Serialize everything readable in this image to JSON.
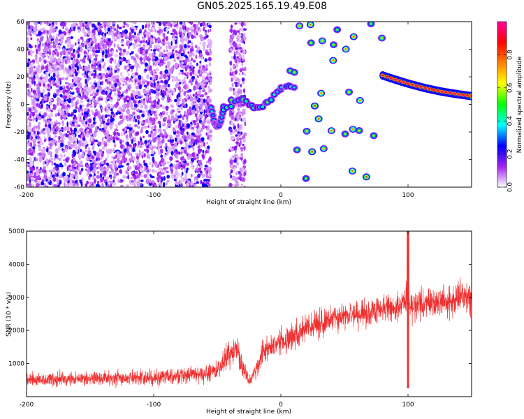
{
  "title": "GN05.2025.165.19.49.E08",
  "chart_data": [
    {
      "type": "heatmap",
      "xlabel": "Height of straight line (km)",
      "ylabel": "Frequency (Hz)",
      "xlim": [
        -200,
        150
      ],
      "ylim": [
        -60,
        60
      ],
      "x_ticks": [
        -200,
        -100,
        0,
        100
      ],
      "y_ticks": [
        -60,
        -40,
        -20,
        0,
        20,
        40,
        60
      ],
      "grid": false,
      "colorbar": {
        "label": "Normalized spectral amplitude",
        "range": [
          0,
          1
        ],
        "ticks": [
          0.0,
          0.2,
          0.4,
          0.6,
          0.8
        ],
        "tick_labels": [
          "0.0",
          "0.2",
          "0.4",
          "0.6",
          "0.8"
        ],
        "colors": [
          "#ffffff",
          "#a020f0",
          "#0000ff",
          "#00ffff",
          "#00ff00",
          "#ffff00",
          "#ff8000",
          "#ff0000",
          "#ff00a0"
        ]
      },
      "regions": [
        {
          "name": "noise",
          "x": [
            -200,
            -55
          ],
          "y": [
            -60,
            60
          ],
          "amplitude": [
            0.05,
            0.2
          ]
        },
        {
          "name": "noise-band",
          "x": [
            -40,
            -28
          ],
          "y": [
            -60,
            60
          ],
          "amplitude": [
            0.05,
            0.15
          ]
        }
      ],
      "features": [
        {
          "name": "early-blob",
          "x": [
            -55,
            -45
          ],
          "y": [
            -18,
            2
          ],
          "peak_amplitude": 0.45
        },
        {
          "name": "rising-track",
          "x": [
            -45,
            10
          ],
          "y": [
            -5,
            22
          ],
          "peak_amplitude": 0.6
        },
        {
          "name": "scattered-blips",
          "x": [
            5,
            80
          ],
          "y": [
            -55,
            60
          ],
          "peak_amplitude": 0.85
        },
        {
          "name": "main-tone",
          "x": [
            80,
            150
          ],
          "y": [
            21,
            6
          ],
          "peak_amplitude": 0.95
        }
      ]
    },
    {
      "type": "line",
      "xlabel": "Height of straight line (km)",
      "ylabel": "SNR (10 * v/v)",
      "xlim": [
        -200,
        150
      ],
      "ylim": [
        0,
        5000
      ],
      "x_ticks": [
        -200,
        -100,
        0,
        100
      ],
      "y_ticks": [
        1000,
        2000,
        3000,
        4000,
        5000
      ],
      "grid": false,
      "series": [
        {
          "color": "#ee3030",
          "x": [
            -200,
            -180,
            -160,
            -140,
            -120,
            -100,
            -80,
            -60,
            -50,
            -40,
            -35,
            -30,
            -25,
            -20,
            -15,
            -10,
            -5,
            0,
            10,
            20,
            30,
            40,
            50,
            60,
            70,
            80,
            90,
            95,
            100,
            105,
            110,
            120,
            130,
            140,
            150
          ],
          "y": [
            520,
            530,
            540,
            550,
            560,
            580,
            620,
            680,
            800,
            1300,
            1500,
            950,
            420,
            780,
            1300,
            1450,
            1550,
            1650,
            1850,
            2050,
            2250,
            2350,
            2450,
            2500,
            2550,
            2650,
            2700,
            2850,
            2800,
            2750,
            2800,
            2850,
            2900,
            2950,
            3000
          ],
          "noise_spread": [
            350,
            360,
            360,
            370,
            380,
            400,
            420,
            450,
            500,
            700,
            800,
            600,
            300,
            450,
            550,
            600,
            620,
            650,
            650,
            680,
            700,
            700,
            720,
            720,
            720,
            740,
            760,
            800,
            780,
            760,
            760,
            780,
            780,
            800,
            800
          ]
        }
      ],
      "annotations": [
        {
          "x": 100,
          "peak": 5000,
          "dip": 250
        }
      ]
    }
  ]
}
